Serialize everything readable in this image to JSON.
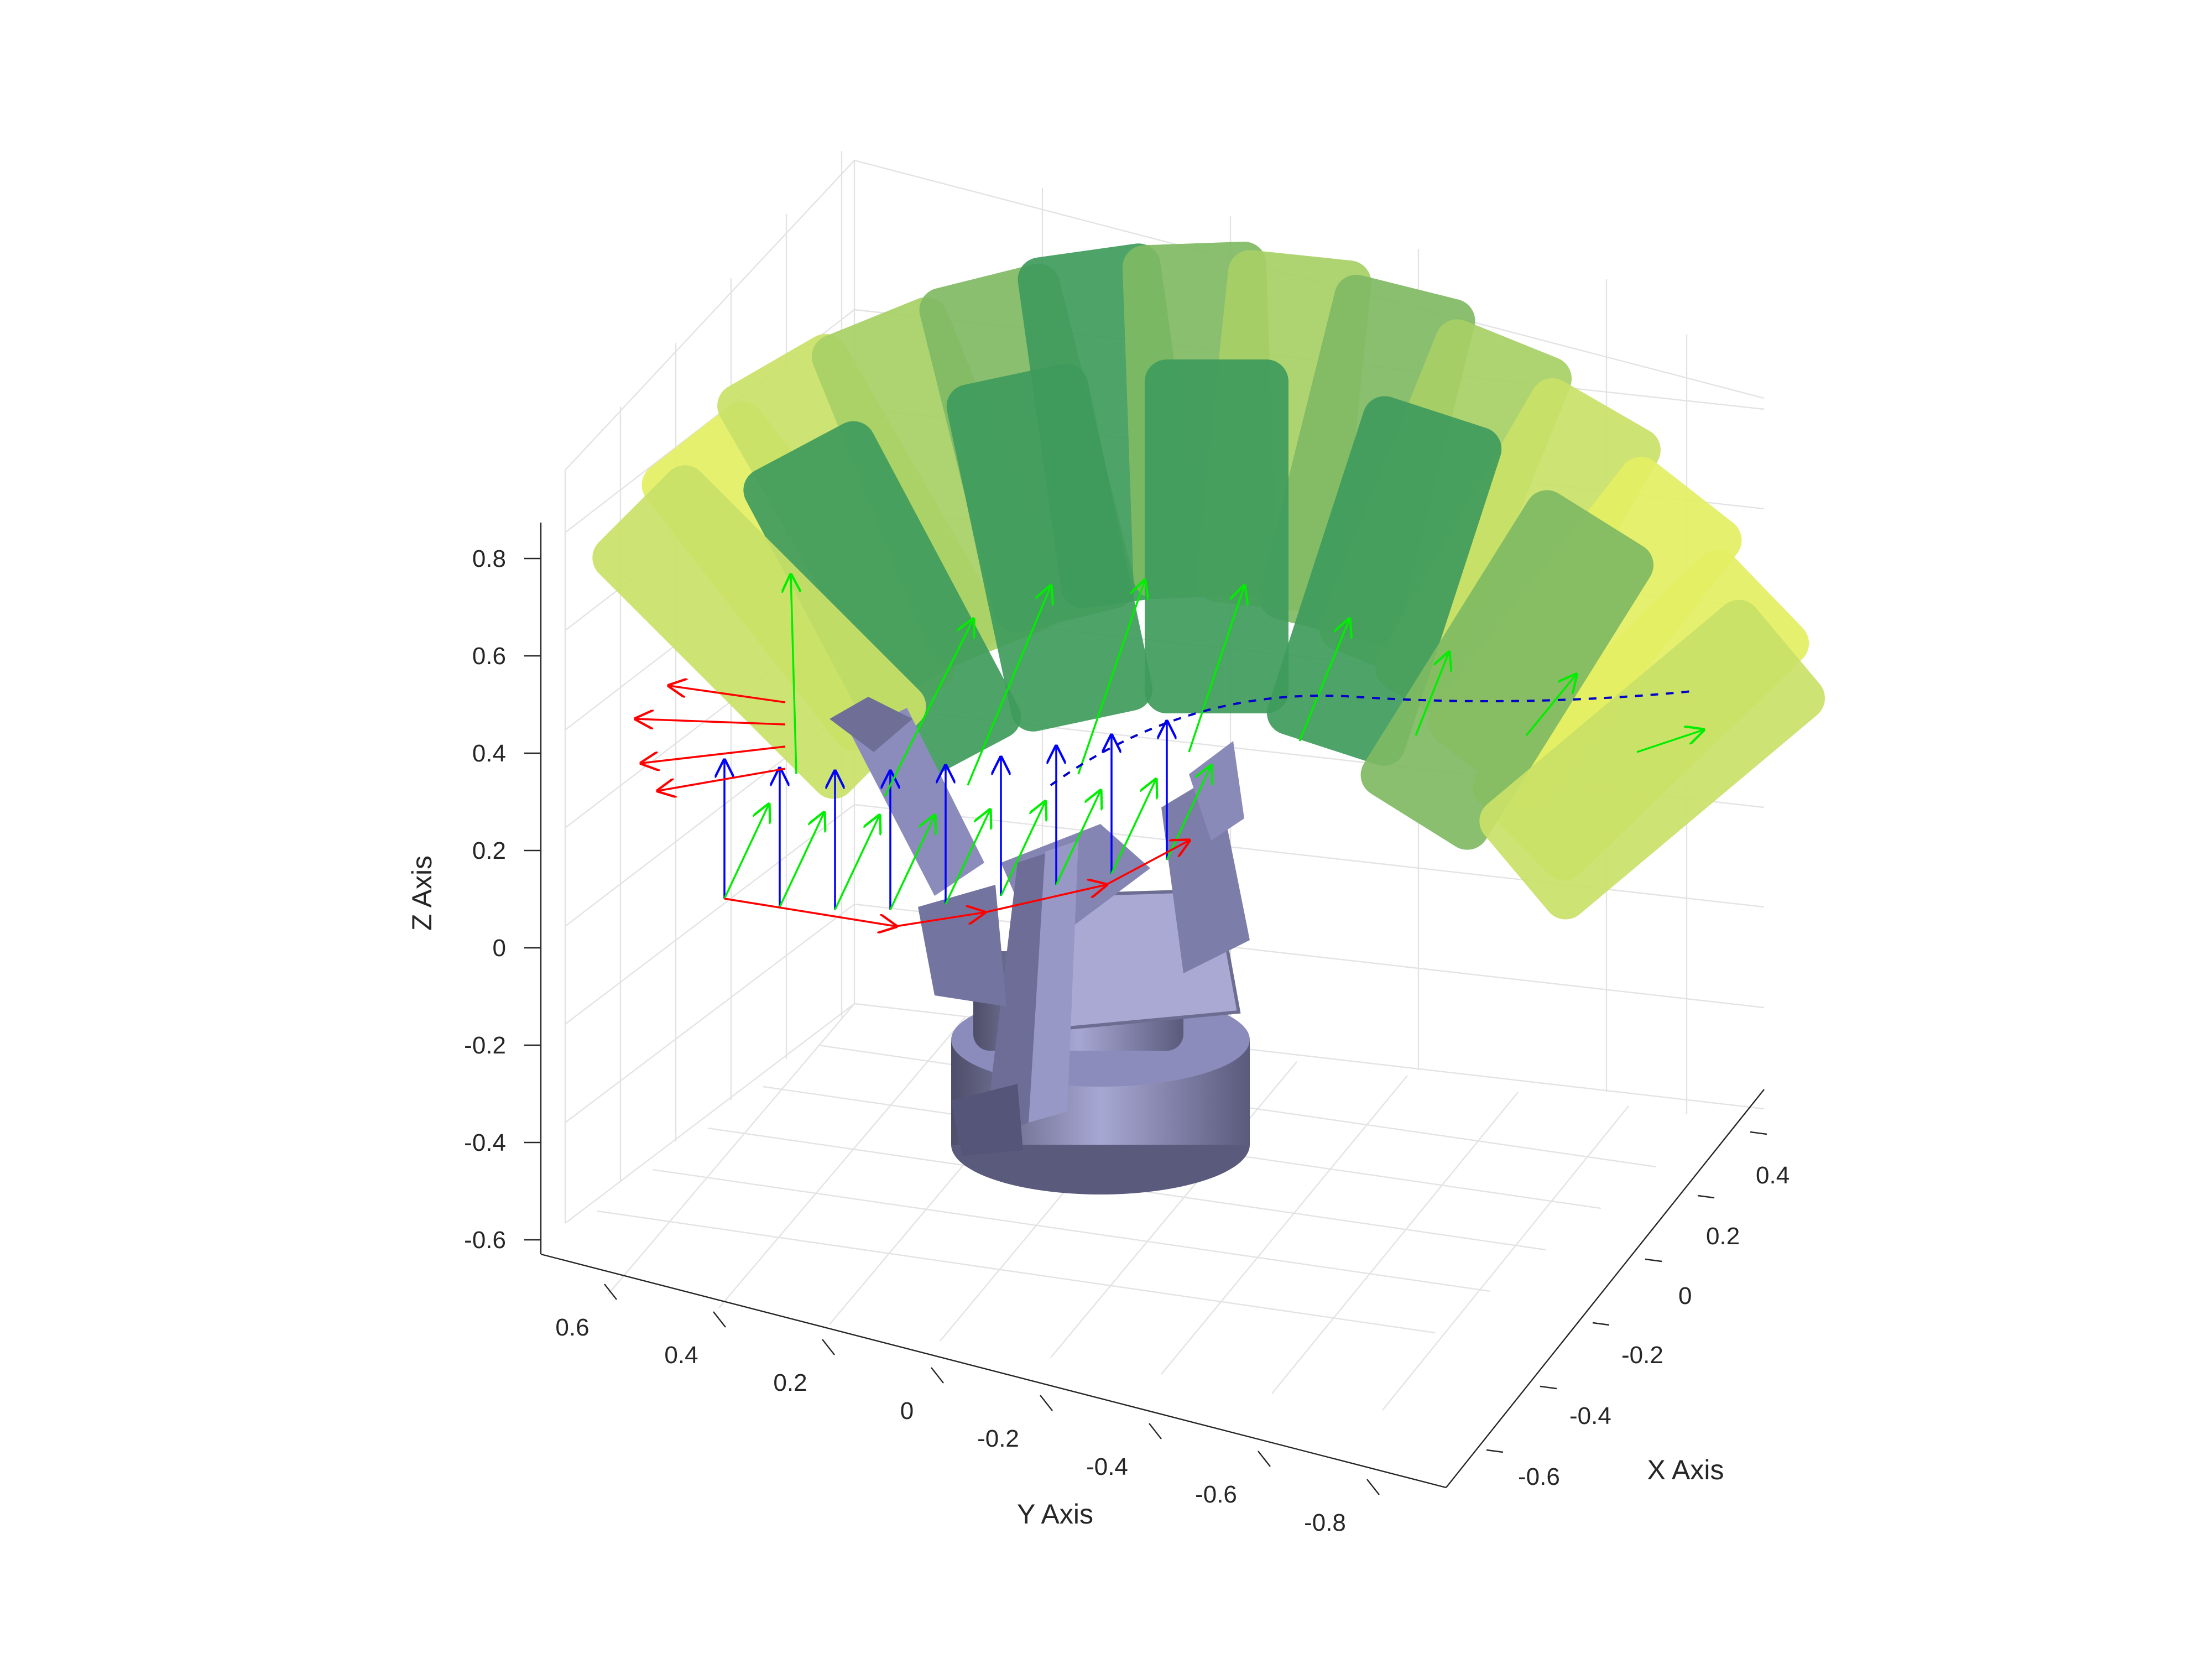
{
  "chart_data": {
    "type": "scatter",
    "title": "",
    "xlabel": "X Axis",
    "ylabel": "Y Axis",
    "zlabel": "Z Axis",
    "xlim": [
      -0.7,
      0.5
    ],
    "ylim": [
      -0.9,
      0.7
    ],
    "zlim": [
      -0.65,
      0.87
    ],
    "x_ticks": [
      "-0.6",
      "-0.4",
      "-0.2",
      "0",
      "0.2",
      "0.4"
    ],
    "y_ticks": [
      "0.6",
      "0.4",
      "0.2",
      "0",
      "-0.2",
      "-0.4",
      "-0.6",
      "-0.8"
    ],
    "z_ticks": [
      "0.8",
      "0.6",
      "0.4",
      "0.2",
      "0",
      "-0.2",
      "-0.4",
      "-0.6"
    ],
    "grid": true,
    "box": "3d",
    "colors": {
      "point_cloud": [
        "#e4ef63",
        "#c9e167",
        "#a7d065",
        "#7fba63",
        "#3f9b5c"
      ],
      "frame_x_arrows": "#ff0000",
      "frame_y_arrows": "#00ff00",
      "frame_z_arrows": "#0000ff",
      "trajectory": "#0000cc",
      "robot": "#9a9ac8"
    },
    "series": [
      {
        "kind": "point-cloud",
        "description_visible": false
      },
      {
        "kind": "coordinate-frames"
      },
      {
        "kind": "robot-mesh"
      }
    ]
  }
}
